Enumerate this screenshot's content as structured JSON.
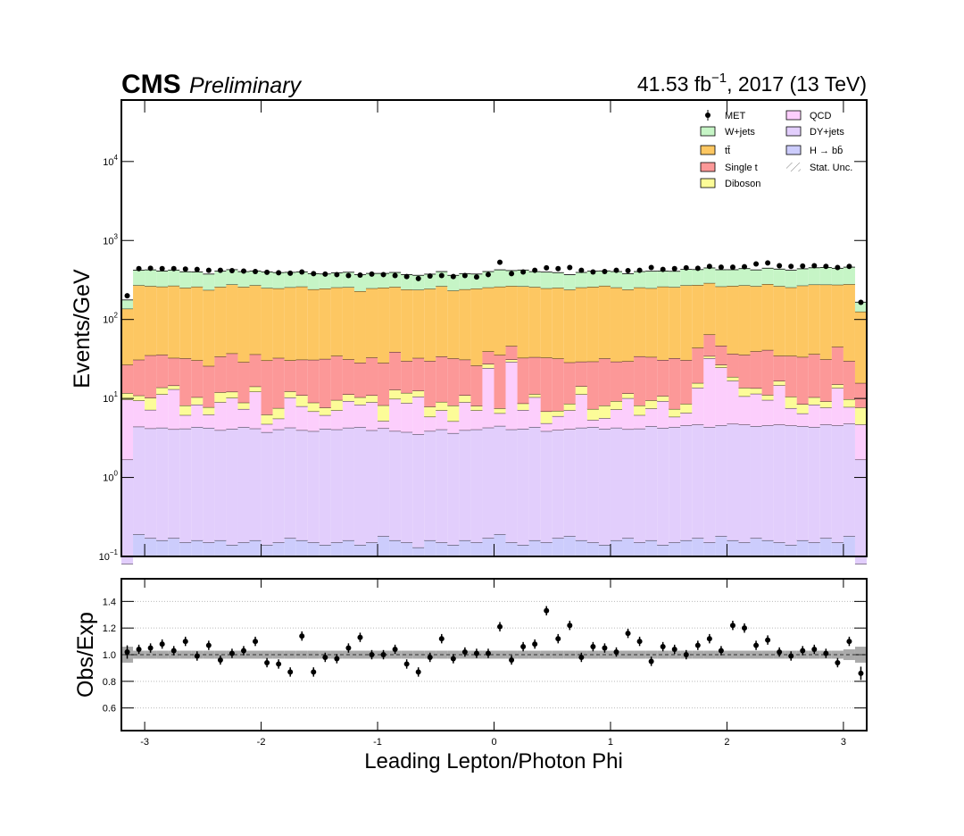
{
  "chart_data": [
    {
      "type": "histogram",
      "title": "CMS",
      "subtitle": "Preliminary",
      "lumi": "41.53 fb",
      "lumi_exponent": "−1",
      "lumi_rest": ", 2017 (13 TeV)",
      "ylabel": "Events/GeV",
      "log_y": true,
      "ylim": [
        0.1,
        60000
      ],
      "yticks": [
        {
          "value": 0.1,
          "label": "10",
          "exponent": "−1"
        },
        {
          "value": 1,
          "label": "10",
          "exponent": "0"
        },
        {
          "value": 10,
          "label": "10",
          "exponent": "1"
        },
        {
          "value": 100,
          "label": "10",
          "exponent": "2"
        },
        {
          "value": 1000,
          "label": "10",
          "exponent": "3"
        },
        {
          "value": 10000,
          "label": "10",
          "exponent": "4"
        }
      ],
      "xlim": [
        -3.2,
        3.2
      ],
      "bins": [
        -3.2,
        -3.1,
        -3.0,
        -2.9,
        -2.8,
        -2.7,
        -2.6,
        -2.5,
        -2.4,
        -2.3,
        -2.2,
        -2.1,
        -2.0,
        -1.9,
        -1.8,
        -1.7,
        -1.6,
        -1.5,
        -1.4,
        -1.3,
        -1.2,
        -1.1,
        -1.0,
        -0.9,
        -0.8,
        -0.7,
        -0.6,
        -0.5,
        -0.4,
        -0.3,
        -0.2,
        -0.1,
        0.0,
        0.1,
        0.2,
        0.3,
        0.4,
        0.5,
        0.6,
        0.7,
        0.8,
        0.9,
        1.0,
        1.1,
        1.2,
        1.3,
        1.4,
        1.5,
        1.6,
        1.7,
        1.8,
        1.9,
        2.0,
        2.1,
        2.2,
        2.3,
        2.4,
        2.5,
        2.6,
        2.7,
        2.8,
        2.9,
        3.0,
        3.1,
        3.2
      ],
      "series": [
        {
          "name": "H → bb̄",
          "color": "#ccccfc",
          "values": [
            0.08,
            0.19,
            0.17,
            0.16,
            0.17,
            0.15,
            0.16,
            0.15,
            0.16,
            0.14,
            0.15,
            0.16,
            0.14,
            0.15,
            0.17,
            0.16,
            0.15,
            0.14,
            0.15,
            0.16,
            0.14,
            0.15,
            0.18,
            0.16,
            0.15,
            0.13,
            0.16,
            0.15,
            0.14,
            0.16,
            0.15,
            0.17,
            0.19,
            0.15,
            0.14,
            0.16,
            0.15,
            0.17,
            0.18,
            0.16,
            0.15,
            0.14,
            0.16,
            0.17,
            0.15,
            0.16,
            0.14,
            0.15,
            0.16,
            0.17,
            0.15,
            0.18,
            0.16,
            0.15,
            0.17,
            0.16,
            0.15,
            0.14,
            0.16,
            0.15,
            0.17,
            0.15,
            0.18,
            0.08
          ]
        },
        {
          "name": "DY+jets",
          "color": "#e2cefc",
          "values": [
            1.6,
            4.2,
            4.0,
            4.1,
            3.9,
            4.0,
            4.2,
            4.1,
            3.8,
            4.0,
            4.2,
            4.0,
            3.6,
            3.9,
            4.1,
            3.8,
            3.7,
            4.0,
            3.9,
            4.1,
            4.2,
            3.8,
            4.0,
            3.7,
            3.6,
            3.4,
            3.7,
            3.9,
            3.5,
            3.8,
            3.9,
            4.1,
            4.3,
            3.9,
            4.0,
            4.2,
            3.7,
            3.8,
            3.9,
            4.1,
            4.2,
            4.0,
            4.1,
            3.9,
            4.0,
            4.3,
            4.1,
            4.2,
            4.4,
            4.5,
            4.2,
            4.4,
            4.6,
            4.5,
            4.3,
            4.4,
            4.5,
            4.4,
            4.3,
            4.2,
            4.5,
            4.4,
            4.6,
            1.6
          ]
        },
        {
          "name": "QCD",
          "color": "#fccefc",
          "values": [
            8,
            5,
            3,
            7,
            9,
            2,
            4,
            2,
            5,
            6,
            3,
            8,
            1,
            1.5,
            6,
            4,
            3,
            2,
            3,
            5,
            4,
            5,
            1,
            6,
            5,
            7,
            2,
            3,
            1.5,
            5,
            3,
            20,
            2,
            25,
            3,
            6,
            1,
            2,
            3,
            7,
            1,
            1.5,
            3,
            6,
            2,
            3,
            5,
            1.5,
            2,
            9,
            28,
            20,
            12,
            6,
            7,
            5,
            10,
            3,
            2,
            4,
            3,
            9,
            3,
            3
          ]
        },
        {
          "name": "Diboson",
          "color": "#fcfc98",
          "values": [
            2,
            1.5,
            3,
            2.5,
            1.5,
            2,
            2,
            1.5,
            3,
            2,
            1.5,
            2,
            1.5,
            2,
            2,
            3,
            2,
            1.5,
            2.5,
            2,
            2,
            2,
            3,
            3,
            3,
            2,
            2,
            2,
            3,
            2,
            1,
            3,
            1,
            2,
            1.5,
            1,
            2,
            1,
            1.5,
            3,
            2,
            2.5,
            2,
            1.5,
            2,
            2,
            1.5,
            1.5,
            2,
            2,
            2,
            2,
            2,
            3,
            2,
            1.5,
            2,
            3,
            2,
            2,
            1.5,
            1.5,
            2,
            3
          ]
        },
        {
          "name": "Single t",
          "color": "#fc9898",
          "values": [
            15,
            20,
            25,
            22,
            18,
            24,
            20,
            18,
            22,
            25,
            20,
            22,
            24,
            25,
            18,
            20,
            22,
            24,
            25,
            20,
            18,
            22,
            20,
            26,
            18,
            20,
            22,
            25,
            24,
            20,
            18,
            12,
            28,
            15,
            24,
            22,
            26,
            25,
            20,
            15,
            22,
            24,
            20,
            18,
            26,
            24,
            20,
            25,
            22,
            28,
            30,
            20,
            18,
            22,
            26,
            30,
            18,
            24,
            25,
            26,
            22,
            30,
            20,
            8
          ]
        },
        {
          "name": "tt̄",
          "color": "#fdc762",
          "values": [
            110,
            240,
            230,
            225,
            235,
            220,
            230,
            210,
            225,
            240,
            230,
            235,
            220,
            215,
            225,
            230,
            210,
            215,
            220,
            225,
            200,
            215,
            225,
            220,
            210,
            205,
            215,
            230,
            200,
            210,
            220,
            215,
            225,
            220,
            230,
            225,
            215,
            220,
            210,
            225,
            230,
            235,
            225,
            210,
            220,
            215,
            230,
            225,
            240,
            230,
            225,
            215,
            230,
            235,
            225,
            240,
            230,
            220,
            235,
            240,
            245,
            230,
            250,
            110
          ]
        },
        {
          "name": "W+jets",
          "color": "#c6f5c6",
          "values": [
            40,
            150,
            160,
            150,
            155,
            150,
            140,
            140,
            150,
            150,
            145,
            140,
            150,
            145,
            140,
            140,
            140,
            130,
            135,
            140,
            140,
            135,
            130,
            135,
            130,
            125,
            130,
            140,
            130,
            140,
            130,
            150,
            165,
            150,
            160,
            145,
            150,
            140,
            130,
            140,
            150,
            145,
            150,
            140,
            150,
            160,
            150,
            150,
            160,
            155,
            160,
            165,
            160,
            170,
            160,
            165,
            170,
            165,
            170,
            175,
            180,
            170,
            180,
            40
          ]
        }
      ],
      "data": {
        "name": "MET",
        "color": "#000000",
        "values": [
          200,
          440,
          445,
          440,
          440,
          435,
          430,
          420,
          420,
          415,
          410,
          405,
          395,
          390,
          385,
          400,
          380,
          375,
          370,
          360,
          365,
          375,
          370,
          360,
          350,
          330,
          355,
          360,
          350,
          360,
          345,
          370,
          530,
          380,
          400,
          420,
          450,
          440,
          455,
          420,
          400,
          405,
          420,
          415,
          420,
          455,
          430,
          440,
          450,
          445,
          470,
          460,
          460,
          465,
          505,
          520,
          480,
          470,
          475,
          480,
          470,
          455,
          470,
          165
        ]
      }
    },
    {
      "type": "errorbar",
      "ylabel": "Obs/Exp",
      "xlabel": "Leading Lepton/Photon Phi",
      "xlim": [
        -3.2,
        3.2
      ],
      "xticks": [
        -3,
        -2,
        -1,
        0,
        1,
        2,
        3
      ],
      "ylim": [
        0.43,
        1.57
      ],
      "yticks": [
        0.6,
        0.8,
        {
          "value": 1,
          "label": "1.0"
        },
        1.2,
        1.4
      ],
      "grid": true,
      "reference_line": 1,
      "x": [
        -3.15,
        -3.05,
        -2.95,
        -2.85,
        -2.75,
        -2.65,
        -2.55,
        -2.45,
        -2.35,
        -2.25,
        -2.15,
        -2.05,
        -1.95,
        -1.85,
        -1.75,
        -1.65,
        -1.55,
        -1.45,
        -1.35,
        -1.25,
        -1.15,
        -1.05,
        -0.95,
        -0.85,
        -0.75,
        -0.65,
        -0.55,
        -0.45,
        -0.35,
        -0.25,
        -0.15,
        -0.05,
        0.05,
        0.15,
        0.25,
        0.35,
        0.45,
        0.55,
        0.65,
        0.75,
        0.85,
        0.95,
        1.05,
        1.15,
        1.25,
        1.35,
        1.45,
        1.55,
        1.65,
        1.75,
        1.85,
        1.95,
        2.05,
        2.15,
        2.25,
        2.35,
        2.45,
        2.55,
        2.65,
        2.75,
        2.85,
        2.95,
        3.05,
        3.15
      ],
      "values": [
        1.02,
        1.04,
        1.05,
        1.08,
        1.03,
        1.1,
        0.99,
        1.07,
        0.96,
        1.01,
        1.03,
        1.1,
        0.94,
        0.93,
        0.87,
        1.14,
        0.87,
        0.98,
        0.97,
        1.05,
        1.13,
        1.0,
        1.0,
        1.04,
        0.93,
        0.87,
        0.98,
        1.12,
        0.97,
        1.02,
        1.01,
        1.01,
        1.21,
        0.96,
        1.06,
        1.08,
        1.33,
        1.12,
        1.22,
        0.98,
        1.06,
        1.05,
        1.02,
        1.16,
        1.1,
        0.95,
        1.06,
        1.04,
        1.0,
        1.07,
        1.12,
        1.03,
        1.22,
        1.2,
        1.07,
        1.11,
        1.02,
        0.99,
        1.03,
        1.04,
        1.01,
        0.94,
        1.1,
        0.86
      ],
      "errors": [
        0.05,
        0.035,
        0.035,
        0.035,
        0.035,
        0.035,
        0.035,
        0.035,
        0.035,
        0.035,
        0.035,
        0.035,
        0.035,
        0.035,
        0.035,
        0.035,
        0.035,
        0.035,
        0.035,
        0.035,
        0.035,
        0.035,
        0.035,
        0.035,
        0.035,
        0.035,
        0.035,
        0.035,
        0.035,
        0.035,
        0.035,
        0.035,
        0.035,
        0.035,
        0.035,
        0.035,
        0.035,
        0.035,
        0.035,
        0.035,
        0.035,
        0.035,
        0.035,
        0.035,
        0.035,
        0.035,
        0.035,
        0.035,
        0.035,
        0.035,
        0.035,
        0.035,
        0.035,
        0.035,
        0.035,
        0.035,
        0.035,
        0.035,
        0.035,
        0.035,
        0.035,
        0.035,
        0.035,
        0.05
      ],
      "band_name": "Stat. Unc.",
      "band": [
        0.06,
        0.03,
        0.03,
        0.03,
        0.03,
        0.03,
        0.03,
        0.03,
        0.03,
        0.03,
        0.03,
        0.03,
        0.03,
        0.03,
        0.03,
        0.03,
        0.03,
        0.03,
        0.03,
        0.03,
        0.03,
        0.03,
        0.03,
        0.03,
        0.03,
        0.03,
        0.03,
        0.03,
        0.03,
        0.03,
        0.03,
        0.03,
        0.03,
        0.03,
        0.03,
        0.03,
        0.03,
        0.03,
        0.03,
        0.03,
        0.03,
        0.03,
        0.03,
        0.03,
        0.03,
        0.03,
        0.03,
        0.03,
        0.03,
        0.03,
        0.03,
        0.03,
        0.03,
        0.03,
        0.03,
        0.03,
        0.03,
        0.03,
        0.03,
        0.03,
        0.03,
        0.03,
        0.04,
        0.06
      ]
    }
  ]
}
